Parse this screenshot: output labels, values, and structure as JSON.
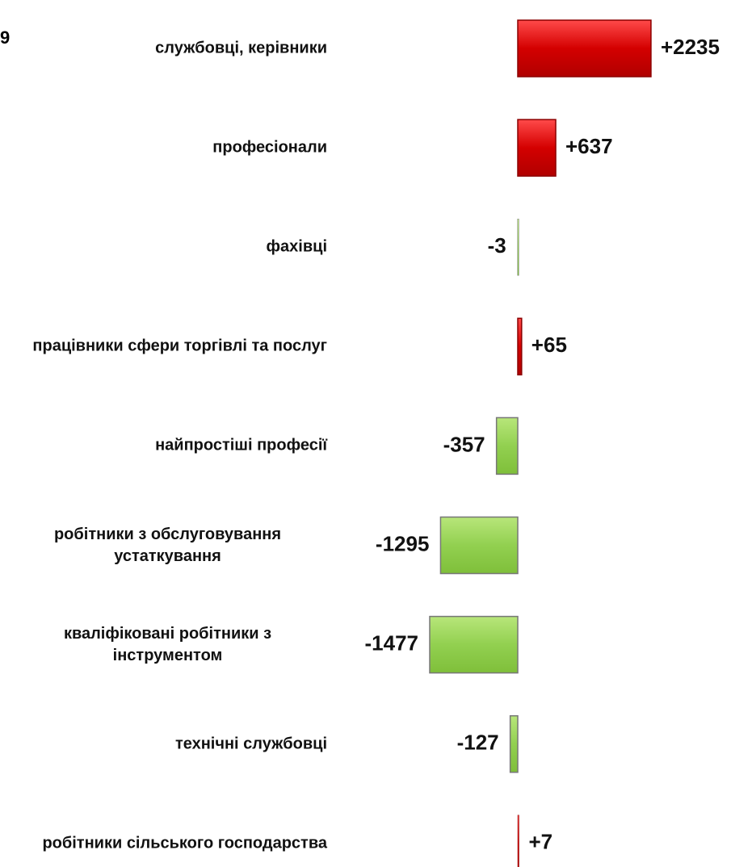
{
  "chart_data": {
    "type": "bar",
    "orientation": "horizontal",
    "title": "9",
    "categories": [
      "службовці, керівники",
      "професіонали",
      "фахівці",
      "працівники сфери торгівлі та послуг",
      "найпростіші професії",
      "робітники з обслуговування устаткування",
      "кваліфіковані робітники з інструментом",
      "технічні службовці",
      "робітники сільського господарства"
    ],
    "values": [
      2235,
      637,
      -3,
      65,
      -357,
      -1295,
      -1477,
      -127,
      7
    ],
    "value_labels": [
      "+2235",
      "+637",
      "-3",
      "+65",
      "-357",
      "-1295",
      "-1477",
      "-127",
      "+7"
    ],
    "positive_color": "#d40000",
    "negative_color": "#92d050",
    "xlim": [
      -2000,
      3000
    ]
  }
}
